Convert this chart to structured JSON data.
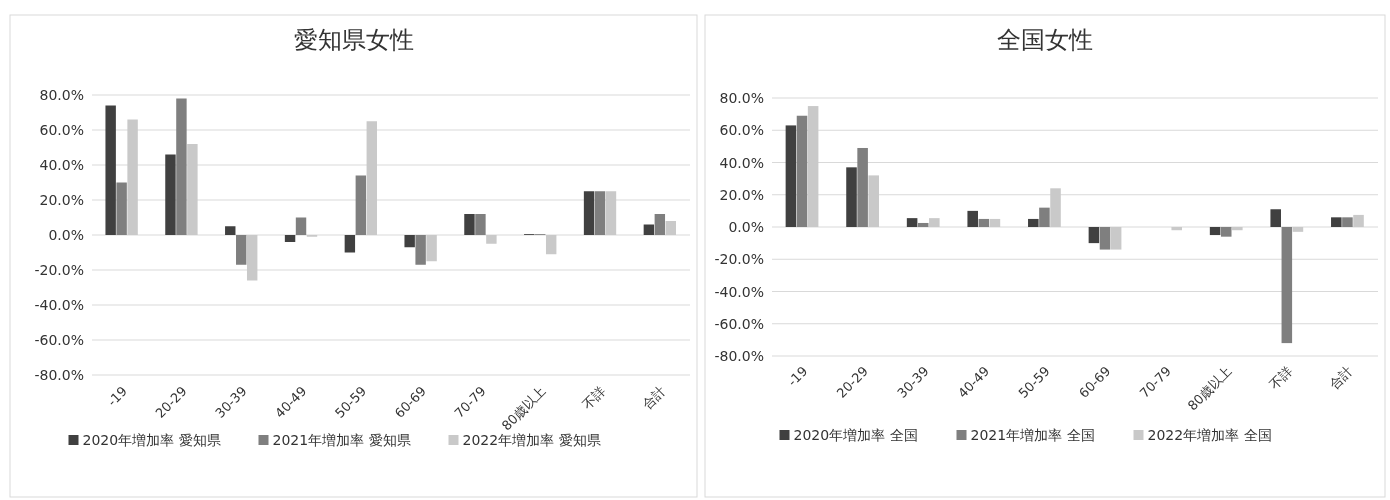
{
  "chart_data": [
    {
      "type": "bar",
      "title": "愛知県女性",
      "categories": [
        "-19",
        "20-29",
        "30-39",
        "40-49",
        "50-59",
        "60-69",
        "70-79",
        "80歳以上",
        "不詳",
        "合計"
      ],
      "series": [
        {
          "name": "2020年増加率 愛知県",
          "color": "#404040",
          "values": [
            74,
            46,
            5,
            -4,
            -10,
            -7,
            12,
            0.5,
            25,
            6
          ]
        },
        {
          "name": "2021年増加率 愛知県",
          "color": "#7f7f7f",
          "values": [
            30,
            78,
            -17,
            10,
            34,
            -17,
            12,
            0.5,
            25,
            12
          ]
        },
        {
          "name": "2022年増加率 愛知県",
          "color": "#c9c9c9",
          "values": [
            66,
            52,
            -26,
            -1,
            65,
            -15,
            -5,
            -11,
            25,
            8
          ]
        }
      ],
      "ylim": [
        -80,
        80
      ],
      "yticks": [
        {
          "value": -80,
          "label": "-80.0%"
        },
        {
          "value": -60,
          "label": "-60.0%"
        },
        {
          "value": -40,
          "label": "-40.0%"
        },
        {
          "value": -20,
          "label": "-20.0%"
        },
        {
          "value": 0,
          "label": "0.0%"
        },
        {
          "value": 20,
          "label": "20.0%"
        },
        {
          "value": 40,
          "label": "40.0%"
        },
        {
          "value": 60,
          "label": "60.0%"
        },
        {
          "value": 80,
          "label": "80.0%"
        }
      ],
      "grid": "y",
      "legend": "bottom"
    },
    {
      "type": "bar",
      "title": "全国女性",
      "categories": [
        "-19",
        "20-29",
        "30-39",
        "40-49",
        "50-59",
        "60-69",
        "70-79",
        "80歳以上",
        "不詳",
        "合計"
      ],
      "series": [
        {
          "name": "2020年増加率 全国",
          "color": "#404040",
          "values": [
            63,
            37,
            5.5,
            10,
            5,
            -10,
            0,
            -5,
            11,
            6
          ]
        },
        {
          "name": "2021年増加率 全国",
          "color": "#7f7f7f",
          "values": [
            69,
            49,
            2.5,
            5,
            12,
            -14,
            0,
            -6,
            -72,
            6
          ]
        },
        {
          "name": "2022年増加率 全国",
          "color": "#c9c9c9",
          "values": [
            75,
            32,
            5.5,
            5,
            24,
            -14,
            -2,
            -2,
            -3,
            7.5
          ]
        }
      ],
      "ylim": [
        -80,
        80
      ],
      "yticks": [
        {
          "value": -80,
          "label": "-80.0%"
        },
        {
          "value": -60,
          "label": "-60.0%"
        },
        {
          "value": -40,
          "label": "-40.0%"
        },
        {
          "value": -20,
          "label": "-20.0%"
        },
        {
          "value": 0,
          "label": "0.0%"
        },
        {
          "value": 20,
          "label": "20.0%"
        },
        {
          "value": 40,
          "label": "40.0%"
        },
        {
          "value": 60,
          "label": "60.0%"
        },
        {
          "value": 80,
          "label": "80.0%"
        }
      ],
      "grid": "y",
      "legend": "bottom"
    }
  ]
}
